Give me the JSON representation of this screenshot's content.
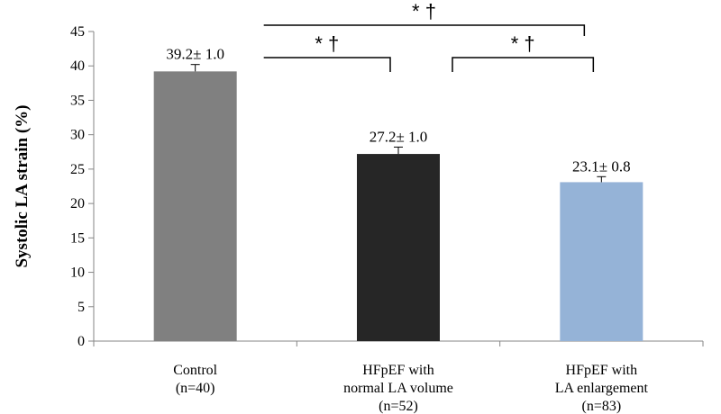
{
  "chart_data": {
    "type": "bar",
    "ylabel": "Systolic LA strain (%)",
    "xlabel": "",
    "ylim": [
      0,
      45
    ],
    "yticks": [
      0,
      5,
      10,
      15,
      20,
      25,
      30,
      35,
      40,
      45
    ],
    "grid": false,
    "legend": "none",
    "categories": [
      [
        "Control",
        "(n=40)"
      ],
      [
        "HFpEF with",
        "normal LA volume",
        "(n=52)"
      ],
      [
        "HFpEF with",
        "LA enlargement",
        "(n=83)"
      ]
    ],
    "values": [
      39.2,
      27.2,
      23.1
    ],
    "errors": [
      1.0,
      1.0,
      0.8
    ],
    "data_labels": [
      "39.2± 1.0",
      "27.2± 1.0",
      "23.1± 0.8"
    ],
    "bar_colors": [
      "#808080",
      "#262626",
      "#95b3d7"
    ],
    "significance": [
      {
        "from": 0,
        "to": 1,
        "label": "* †"
      },
      {
        "from": 1,
        "to": 2,
        "label": "* †"
      },
      {
        "from": 0,
        "to": 2,
        "label": "* †"
      }
    ]
  }
}
